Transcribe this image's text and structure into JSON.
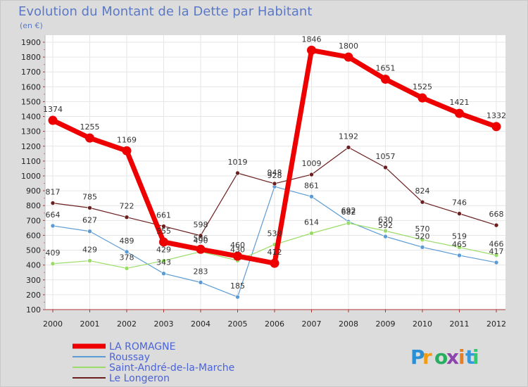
{
  "chart_data": {
    "type": "line",
    "title": "Evolution du Montant de la Dette par Habitant",
    "subtitle": "(en €)",
    "xlabel": "",
    "ylabel": "",
    "categories": [
      "2000",
      "2001",
      "2002",
      "2003",
      "2004",
      "2005",
      "2006",
      "2007",
      "2008",
      "2009",
      "2010",
      "2011",
      "2012"
    ],
    "ylim": [
      100,
      1900
    ],
    "yticks": [
      100,
      200,
      300,
      400,
      500,
      600,
      700,
      800,
      900,
      1000,
      1100,
      1200,
      1300,
      1400,
      1500,
      1600,
      1700,
      1800,
      1900
    ],
    "grid": true,
    "legend_position": "bottom-left",
    "series": [
      {
        "name": "LA ROMAGNE",
        "color": "#ee0000",
        "width": 7,
        "marker": 6.5,
        "values": [
          1374,
          1255,
          1169,
          555,
          506,
          460,
          412,
          1846,
          1800,
          1651,
          1525,
          1421,
          1332
        ],
        "labels": [
          "1374",
          "1255",
          "1169",
          "555",
          "506",
          "460",
          "412",
          "1846",
          "1800",
          "1651",
          "1525",
          "1421",
          "1332"
        ]
      },
      {
        "name": "Roussay",
        "color": "#5b9bd5",
        "width": 1.2,
        "marker": 3,
        "values": [
          664,
          627,
          489,
          343,
          283,
          185,
          928,
          861,
          692,
          592,
          520,
          465,
          417
        ],
        "labels": [
          "664",
          "627",
          "489",
          "343",
          "283",
          "185",
          "928",
          "861",
          "692",
          "592",
          "520",
          "465",
          "417"
        ]
      },
      {
        "name": "Saint-André-de-la-Marche",
        "color": "#99dd66",
        "width": 1.2,
        "marker": 3,
        "values": [
          409,
          429,
          378,
          429,
          490,
          430,
          538,
          614,
          682,
          630,
          570,
          519,
          466
        ],
        "labels": [
          "409",
          "429",
          "378",
          "429",
          "490",
          "430",
          "538",
          "614",
          "682",
          "630",
          "570",
          "519",
          "466"
        ]
      },
      {
        "name": "Le Longeron",
        "color": "#6b1f1f",
        "width": 1.2,
        "marker": 3,
        "values": [
          817,
          785,
          722,
          661,
          598,
          1019,
          948,
          1009,
          1192,
          1057,
          824,
          746,
          668
        ],
        "labels": [
          "817",
          "785",
          "722",
          "661",
          "598",
          "1019",
          "948",
          "1009",
          "1192",
          "1057",
          "824",
          "746",
          "668"
        ]
      }
    ]
  },
  "brand": {
    "letters": [
      "P",
      "r",
      "o",
      "x",
      "i",
      "t",
      "i"
    ],
    "colors": [
      "#2a8fd6",
      "#f39c12",
      "#27ae60",
      "#8e44ad",
      "#e67e22",
      "#3498db",
      "#2ecc71"
    ]
  }
}
